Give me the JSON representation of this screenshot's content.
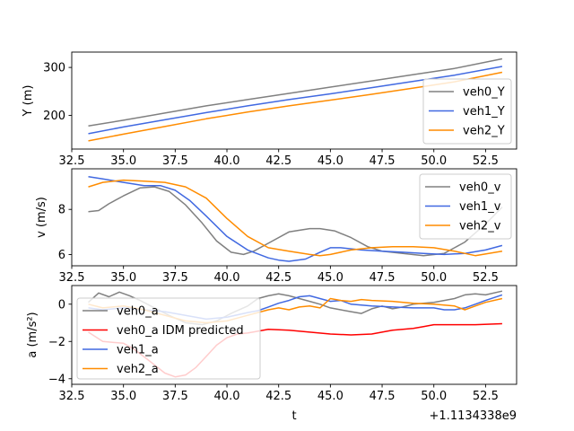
{
  "figure": {
    "xlabel": "t",
    "x_offset_label": "+1.1134338e9"
  },
  "chart_data": [
    {
      "type": "line",
      "ylabel": "Y (m)",
      "xlim": [
        32.5,
        54.0
      ],
      "ylim": [
        130,
        332
      ],
      "xticks": [
        32.5,
        35.0,
        37.5,
        40.0,
        42.5,
        45.0,
        47.5,
        50.0,
        52.5
      ],
      "xtick_labels": [
        "32.5",
        "35.0",
        "37.5",
        "40.0",
        "42.5",
        "45.0",
        "47.5",
        "50.0",
        "52.5"
      ],
      "yticks": [
        200,
        300
      ],
      "ytick_labels": [
        "200",
        "300"
      ],
      "legend_position": "lower-right",
      "series": [
        {
          "name": "veh0_Y",
          "color": "#808080",
          "x": [
            33.3,
            35,
            37,
            39,
            41,
            43,
            45,
            47,
            49,
            51,
            53.3
          ],
          "y": [
            178,
            190,
            205,
            220,
            233,
            246,
            259,
            272,
            285,
            298,
            318
          ]
        },
        {
          "name": "veh1_Y",
          "color": "#4169e1",
          "x": [
            33.3,
            35,
            37,
            39,
            41,
            43,
            45,
            47,
            49,
            51,
            53.3
          ],
          "y": [
            162,
            176,
            191,
            206,
            220,
            233,
            245,
            258,
            271,
            284,
            302
          ]
        },
        {
          "name": "veh2_Y",
          "color": "#ff8c00",
          "x": [
            33.3,
            35,
            37,
            39,
            41,
            43,
            45,
            47,
            49,
            51,
            53.3
          ],
          "y": [
            147,
            161,
            177,
            193,
            207,
            220,
            232,
            244,
            257,
            270,
            290
          ]
        }
      ]
    },
    {
      "type": "line",
      "ylabel": "v (m/s)",
      "xlim": [
        32.5,
        54.0
      ],
      "ylim": [
        5.5,
        9.8
      ],
      "xticks": [
        32.5,
        35.0,
        37.5,
        40.0,
        42.5,
        45.0,
        47.5,
        50.0,
        52.5
      ],
      "xtick_labels": [
        "32.5",
        "35.0",
        "37.5",
        "40.0",
        "42.5",
        "45.0",
        "47.5",
        "50.0",
        "52.5"
      ],
      "yticks": [
        6,
        8
      ],
      "ytick_labels": [
        "6",
        "8"
      ],
      "legend_position": "upper-right",
      "series": [
        {
          "name": "veh0_v",
          "color": "#808080",
          "x": [
            33.3,
            33.8,
            34.3,
            35,
            35.8,
            36.5,
            37.2,
            38,
            38.8,
            39.5,
            40.2,
            40.8,
            41.3,
            42,
            43,
            44,
            44.5,
            45.2,
            46,
            46.8,
            47.5,
            48.5,
            49.5,
            50.5,
            51.5,
            52.5,
            53.3
          ],
          "y": [
            7.9,
            7.95,
            8.25,
            8.6,
            8.95,
            9.0,
            8.8,
            8.2,
            7.4,
            6.6,
            6.1,
            6.0,
            6.15,
            6.5,
            7.0,
            7.15,
            7.15,
            7.05,
            6.75,
            6.35,
            6.15,
            6.05,
            5.95,
            6.05,
            6.55,
            7.35,
            8.1
          ]
        },
        {
          "name": "veh1_v",
          "color": "#4169e1",
          "x": [
            33.3,
            34,
            35,
            36,
            36.8,
            37.5,
            38.2,
            39,
            40,
            41,
            42,
            42.5,
            43,
            43.8,
            44.5,
            45,
            45.5,
            46.5,
            47.5,
            48.5,
            49.5,
            50.5,
            51.5,
            52.5,
            53.3
          ],
          "y": [
            9.45,
            9.35,
            9.2,
            9.05,
            9.05,
            8.85,
            8.4,
            7.7,
            6.8,
            6.2,
            5.85,
            5.75,
            5.7,
            5.8,
            6.1,
            6.3,
            6.3,
            6.2,
            6.15,
            6.1,
            6.05,
            6.0,
            6.05,
            6.2,
            6.4
          ]
        },
        {
          "name": "veh2_v",
          "color": "#ff8c00",
          "x": [
            33.3,
            34,
            35,
            36,
            37,
            38,
            39,
            40,
            41,
            42,
            43,
            44,
            44.5,
            45,
            46,
            47,
            48,
            49,
            50,
            51,
            52,
            53.3
          ],
          "y": [
            9.0,
            9.2,
            9.3,
            9.25,
            9.2,
            9.0,
            8.5,
            7.6,
            6.8,
            6.3,
            6.15,
            6.0,
            5.95,
            6.0,
            6.2,
            6.3,
            6.35,
            6.35,
            6.3,
            6.15,
            5.95,
            6.15
          ]
        }
      ]
    },
    {
      "type": "line",
      "ylabel": "a (m/s²)",
      "xlim": [
        32.5,
        54.0
      ],
      "ylim": [
        -4.3,
        1.0
      ],
      "xticks": [
        32.5,
        35.0,
        37.5,
        40.0,
        42.5,
        45.0,
        47.5,
        50.0,
        52.5
      ],
      "xtick_labels": [
        "32.5",
        "35.0",
        "37.5",
        "40.0",
        "42.5",
        "45.0",
        "47.5",
        "50.0",
        "52.5"
      ],
      "yticks": [
        -4,
        -2,
        0
      ],
      "ytick_labels": [
        "−4",
        "−2",
        "0"
      ],
      "legend_position": "lower-left",
      "series": [
        {
          "name": "veh0_a",
          "color": "#808080",
          "x": [
            33.3,
            33.8,
            34.3,
            34.8,
            35.3,
            35.8,
            36.5,
            37.2,
            38,
            38.8,
            39.5,
            40.2,
            41,
            41.5,
            42,
            42.5,
            43,
            43.5,
            44,
            44.5,
            45,
            45.5,
            46,
            46.5,
            47,
            47.5,
            48,
            48.5,
            49,
            49.5,
            50,
            50.5,
            51,
            51.5,
            52,
            52.5,
            53.3
          ],
          "y": [
            0.1,
            0.6,
            0.4,
            0.65,
            0.45,
            0.2,
            -0.2,
            -0.6,
            -1.0,
            -1.1,
            -0.9,
            -0.5,
            -0.1,
            0.3,
            0.45,
            0.55,
            0.45,
            0.3,
            0.15,
            0.0,
            -0.2,
            -0.3,
            -0.4,
            -0.5,
            -0.25,
            -0.1,
            -0.25,
            -0.15,
            0.0,
            0.05,
            0.1,
            0.2,
            0.3,
            0.5,
            0.55,
            0.5,
            0.7
          ]
        },
        {
          "name": "veh0_a IDM predicted",
          "color": "#ff0000",
          "x": [
            33.3,
            34,
            35,
            35.5,
            36.2,
            37,
            37.5,
            38,
            38.5,
            39,
            39.5,
            40,
            40.5,
            41,
            42,
            43,
            44,
            45,
            46,
            47,
            48,
            49,
            49.5,
            50,
            51,
            52,
            53.3
          ],
          "y": [
            -1.5,
            -2.0,
            -2.1,
            -2.4,
            -3.0,
            -3.7,
            -3.9,
            -3.8,
            -3.4,
            -2.8,
            -2.2,
            -1.8,
            -1.6,
            -1.55,
            -1.35,
            -1.4,
            -1.5,
            -1.6,
            -1.65,
            -1.6,
            -1.4,
            -1.3,
            -1.2,
            -1.1,
            -1.1,
            -1.1,
            -1.05
          ]
        },
        {
          "name": "veh1_a",
          "color": "#4169e1",
          "x": [
            33.3,
            34,
            35,
            36,
            37,
            38,
            39,
            40,
            41,
            41.5,
            42,
            42.5,
            43,
            43.5,
            44,
            44.5,
            45,
            45.5,
            46,
            47,
            48,
            49,
            50,
            50.5,
            51,
            51.5,
            52,
            52.5,
            53.3
          ],
          "y": [
            -0.2,
            -0.3,
            -0.2,
            -0.3,
            -0.4,
            -0.6,
            -0.8,
            -0.7,
            -0.45,
            -0.35,
            -0.15,
            0.05,
            0.2,
            0.4,
            0.45,
            0.3,
            0.15,
            0.2,
            0.0,
            -0.1,
            -0.15,
            -0.2,
            -0.2,
            -0.3,
            -0.3,
            -0.2,
            0.0,
            0.2,
            0.5
          ]
        },
        {
          "name": "veh2_a",
          "color": "#ff8c00",
          "x": [
            33.3,
            34,
            35,
            36,
            37,
            38,
            39,
            40,
            41,
            42,
            42.5,
            43,
            43.5,
            44,
            44.5,
            45,
            45.5,
            46,
            46.5,
            47,
            48,
            49,
            50,
            51,
            51.5,
            52,
            52.5,
            53.3
          ],
          "y": [
            0.0,
            -0.2,
            -0.1,
            -0.3,
            -0.6,
            -0.9,
            -1.0,
            -0.9,
            -0.6,
            -0.3,
            -0.2,
            -0.3,
            -0.15,
            -0.1,
            -0.2,
            0.3,
            0.2,
            0.15,
            0.25,
            0.2,
            0.15,
            0.05,
            0.0,
            -0.1,
            -0.3,
            -0.1,
            0.1,
            0.3
          ]
        }
      ]
    }
  ]
}
